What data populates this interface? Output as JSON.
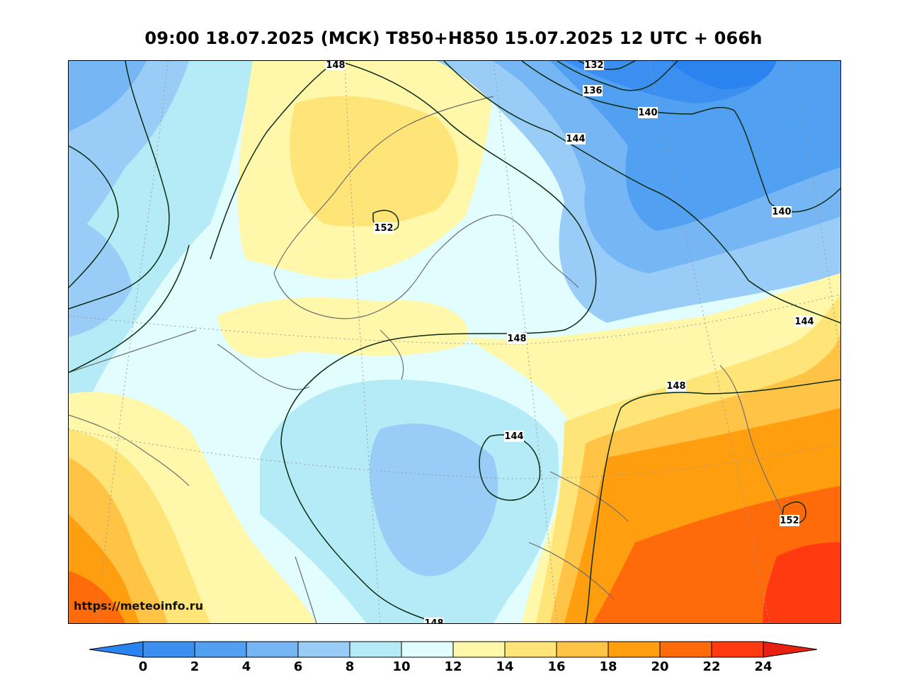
{
  "title": "09:00 18.07.2025 (МСК) T850+H850 15.07.2025 12 UTC + 066h",
  "watermark": "https://meteoinfo.ru",
  "colorbar": {
    "ticks": [
      "0",
      "2",
      "4",
      "6",
      "8",
      "10",
      "12",
      "14",
      "16",
      "18",
      "20",
      "22",
      "24"
    ],
    "colors": {
      "below": "#2b83f0",
      "0_2": "#3a8ff0",
      "2_4": "#52a0f2",
      "4_6": "#76b6f5",
      "6_8": "#99ccf7",
      "8_10": "#b4ebf6",
      "10_12": "#e1fdfd",
      "12_14": "#fff8ab",
      "14_16": "#ffe577",
      "16_18": "#ffc446",
      "18_20": "#ff9f10",
      "20_22": "#ff6b0a",
      "22_24": "#ff3a10",
      "above": "#e82010"
    }
  },
  "contour_labels": [
    "132",
    "136",
    "140",
    "140",
    "144",
    "144",
    "144",
    "148",
    "148",
    "148",
    "148",
    "152",
    "152"
  ]
}
